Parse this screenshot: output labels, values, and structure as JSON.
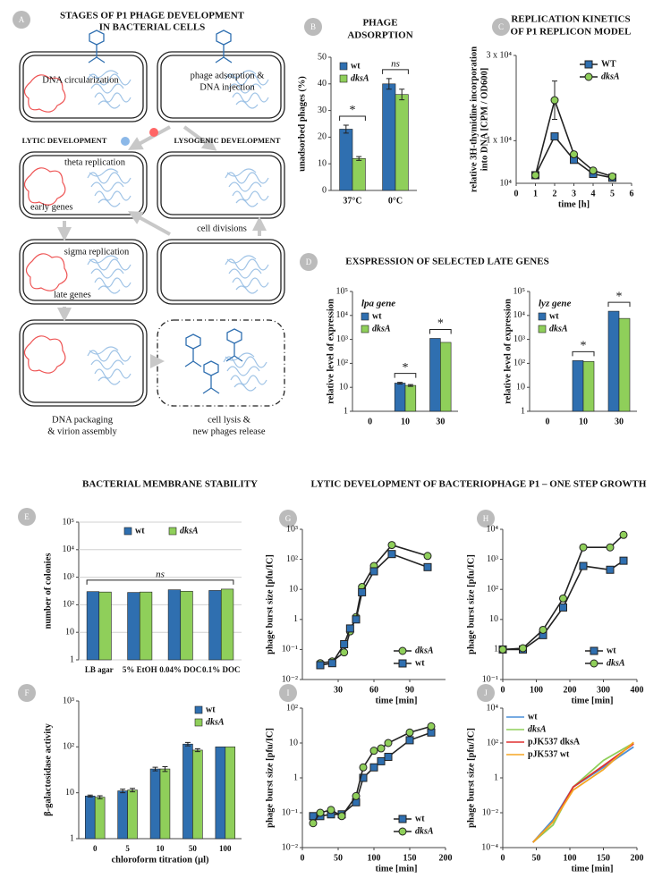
{
  "diagram": {
    "panel": "A",
    "title": [
      "STAGES OF P1 PHAGE DEVELOPMENT",
      "IN BACTERIAL CELLS"
    ],
    "labels": [
      "DNA circularization",
      "phage adsorption &",
      "DNA injection",
      "LYTIC DEVELOPMENT",
      "LYSOGENIC DEVELOPMENT",
      "theta replication",
      "early genes",
      "cell  divisions",
      "sigma replication",
      "late genes",
      "DNA packaging",
      "& virion assembly",
      "cell lysis &",
      "new phages release"
    ]
  },
  "chart_data": [
    {
      "type": "bar",
      "panel": "B",
      "title": [
        "PHAGE",
        "ADSORPTION"
      ],
      "ylabel": "unadsorbed phages (%)",
      "categories": [
        "37°C",
        "0°C"
      ],
      "series": [
        {
          "name": "wt",
          "color": "#2f6fb0",
          "values": [
            23,
            40
          ],
          "errors": [
            1.5,
            2
          ]
        },
        {
          "name": "dksA",
          "font_style": "italic",
          "color": "#8fcf5a",
          "values": [
            12,
            36
          ],
          "errors": [
            0.7,
            2
          ]
        }
      ],
      "ylim": [
        0,
        50
      ],
      "yticks": [
        0,
        10,
        20,
        30,
        40,
        50
      ],
      "legend": "upper left",
      "annotations": [
        "*",
        "ns"
      ]
    },
    {
      "type": "line",
      "panel": "C",
      "title": [
        "REPLICATION KINETICS",
        "OF P1 REPLICON MODEL"
      ],
      "ylabel": [
        "relative 3H-thymidine incorporation",
        "into DNA [CPM / OD600]"
      ],
      "xlabel": "time [h]",
      "x": [
        1,
        2,
        3,
        4,
        5
      ],
      "series": [
        {
          "name": "WT",
          "color": "#2f6fb0",
          "marker": "square",
          "values": [
            1900,
            11000,
            5500,
            2200,
            1300
          ]
        },
        {
          "name": "dksA",
          "font_style": "italic",
          "color": "#8fcf5a",
          "marker": "circle",
          "values": [
            1900,
            19500,
            6800,
            3000,
            1600
          ],
          "errors": [
            null,
            4500,
            null,
            null,
            null
          ]
        }
      ],
      "xlim": [
        0,
        6
      ],
      "xticks": [
        0,
        1,
        2,
        3,
        4,
        5,
        6
      ],
      "ylim": [
        0,
        30000
      ],
      "yticks": [
        {
          "value": 10000,
          "label": "1 x 10⁴"
        },
        {
          "value": 30000,
          "label": "3 x 10⁴"
        }
      ],
      "ybase_label": "10⁴",
      "legend": "upper right"
    },
    {
      "type": "bar",
      "panel": "D",
      "title": "EXSPRESSION OF SELECTED LATE GENES",
      "subtitle": "lpa gene",
      "ylabel": "relative level of expression",
      "categories": [
        "0",
        "10",
        "30"
      ],
      "log_y": true,
      "series": [
        {
          "name": "wt",
          "color": "#2f6fb0",
          "values": [
            null,
            15,
            1100
          ],
          "errors": [
            null,
            1.2,
            null
          ]
        },
        {
          "name": "dksA",
          "font_style": "italic",
          "color": "#8fcf5a",
          "values": [
            null,
            12,
            750
          ],
          "errors": [
            null,
            1,
            null
          ]
        }
      ],
      "ylim": [
        1,
        100000
      ],
      "yticks": [
        1,
        10,
        {
          "value": 100,
          "label": "10²"
        },
        {
          "value": 1000,
          "label": "10³"
        },
        {
          "value": 10000,
          "label": "10⁴"
        },
        {
          "value": 100000,
          "label": "10⁵"
        }
      ],
      "legend": "upper left",
      "annotations": [
        "*",
        "*"
      ]
    },
    {
      "type": "bar",
      "subtitle": "lyz gene",
      "ylabel": "relative level of expression",
      "categories": [
        "0",
        "10",
        "30"
      ],
      "log_y": true,
      "series": [
        {
          "name": "wt",
          "color": "#2f6fb0",
          "values": [
            null,
            130,
            15000
          ]
        },
        {
          "name": "dksA",
          "font_style": "italic",
          "color": "#8fcf5a",
          "values": [
            null,
            120,
            7500
          ]
        }
      ],
      "ylim": [
        1,
        100000
      ],
      "yticks": [
        1,
        10,
        {
          "value": 100,
          "label": "10²"
        },
        {
          "value": 1000,
          "label": "10³"
        },
        {
          "value": 10000,
          "label": "10⁴"
        },
        {
          "value": 100000,
          "label": "10⁵"
        }
      ],
      "legend": "upper left",
      "annotations": [
        "*",
        "*"
      ]
    },
    {
      "type": "bar",
      "panel": "E",
      "title": "BACTERIAL MEMBRANE STABILITY",
      "ylabel": "number of colonies",
      "categories": [
        "LB agar",
        "5% EtOH",
        "0.04% DOC",
        "0.1% DOC"
      ],
      "log_y": true,
      "grid": true,
      "series": [
        {
          "name": "wt",
          "color": "#2f6fb0",
          "values": [
            300,
            280,
            350,
            330
          ]
        },
        {
          "name": "dksA",
          "font_style": "italic",
          "color": "#8fcf5a",
          "values": [
            290,
            290,
            310,
            370
          ]
        }
      ],
      "ylim": [
        1,
        100000
      ],
      "yticks": [
        1,
        10,
        {
          "value": 100,
          "label": "10²"
        },
        {
          "value": 1000,
          "label": "10³"
        },
        {
          "value": 10000,
          "label": "10⁴"
        },
        {
          "value": 100000,
          "label": "10⁵"
        }
      ],
      "legend": "upper center",
      "annotations": [
        "ns"
      ]
    },
    {
      "type": "bar",
      "panel": "F",
      "ylabel": "β-galactosidase activity",
      "xlabel": "chloroform titration (µl)",
      "categories": [
        "0",
        "5",
        "10",
        "50",
        "100"
      ],
      "log_y": true,
      "series": [
        {
          "name": "wt",
          "color": "#2f6fb0",
          "values": [
            8.5,
            11,
            33,
            115,
            100
          ],
          "errors": [
            0.4,
            1,
            3,
            10,
            null
          ]
        },
        {
          "name": "dksA",
          "font_style": "italic",
          "color": "#8fcf5a",
          "values": [
            8,
            11.5,
            33,
            85,
            100
          ],
          "errors": [
            0.6,
            1,
            4,
            6,
            null
          ]
        }
      ],
      "ylim": [
        1,
        1000
      ],
      "yticks": [
        1,
        10,
        {
          "value": 100,
          "label": "10²"
        },
        {
          "value": 1000,
          "label": "10³"
        }
      ],
      "legend": "upper right"
    },
    {
      "type": "line",
      "panel": "G",
      "title": "LYTIC DEVELOPMENT OF BACTERIOPHAGE P1 – ONE STEP GROWTH",
      "ylabel": "phage burst size [pfu/IC]",
      "xlabel": "time [min]",
      "log_y": true,
      "x": [
        15,
        25,
        35,
        40,
        45,
        50,
        60,
        75,
        105
      ],
      "series": [
        {
          "name": "dksA",
          "font_style": "italic",
          "color": "#8fcf5a",
          "marker": "circle",
          "values": [
            0.035,
            0.04,
            0.08,
            0.4,
            1.2,
            12,
            60,
            300,
            130
          ]
        },
        {
          "name": "wt",
          "color": "#2f6fb0",
          "marker": "square",
          "values": [
            0.03,
            0.035,
            0.15,
            0.5,
            1,
            8,
            40,
            150,
            55
          ]
        }
      ],
      "xlim": [
        0,
        120
      ],
      "xticks": [
        30,
        60,
        90
      ],
      "ylim": [
        0.01,
        1000
      ],
      "yticks": [
        {
          "value": 0.01,
          "label": "10⁻²"
        },
        {
          "value": 0.1,
          "label": "10⁻¹"
        },
        1,
        10,
        {
          "value": 100,
          "label": "10²"
        },
        {
          "value": 1000,
          "label": "10³"
        }
      ],
      "legend": "lower right"
    },
    {
      "type": "line",
      "panel": "H",
      "ylabel": "phage burst size [pfu/IC]",
      "xlabel": "time [min]",
      "log_y": true,
      "x": [
        0,
        60,
        120,
        180,
        240,
        320,
        360
      ],
      "series": [
        {
          "name": "wt",
          "color": "#2f6fb0",
          "marker": "square",
          "values": [
            1,
            1,
            3,
            25,
            600,
            450,
            900
          ]
        },
        {
          "name": "dksA",
          "font_style": "italic",
          "color": "#8fcf5a",
          "marker": "circle",
          "values": [
            1,
            1.1,
            4.5,
            50,
            2500,
            2500,
            6500
          ]
        }
      ],
      "xlim": [
        0,
        400
      ],
      "xticks": [
        0,
        100,
        200,
        300,
        400
      ],
      "ylim": [
        0.1,
        10000
      ],
      "yticks": [
        {
          "value": 0.1,
          "label": "10⁻¹"
        },
        1,
        10,
        {
          "value": 100,
          "label": "10²"
        },
        {
          "value": 1000,
          "label": "10³"
        },
        {
          "value": 10000,
          "label": "10⁴"
        }
      ],
      "legend": "lower right"
    },
    {
      "type": "line",
      "panel": "I",
      "ylabel": "phage burst size [pfu/IC]",
      "xlabel": "time [min]",
      "log_y": true,
      "x": [
        15,
        25,
        40,
        55,
        75,
        85,
        100,
        110,
        120,
        150,
        180
      ],
      "series": [
        {
          "name": "wt",
          "color": "#2f6fb0",
          "marker": "square",
          "values": [
            0.08,
            0.08,
            0.09,
            0.09,
            0.2,
            1,
            2,
            3,
            4,
            12,
            20
          ]
        },
        {
          "name": "dksA",
          "font_style": "italic",
          "color": "#8fcf5a",
          "marker": "circle",
          "values": [
            0.05,
            0.1,
            0.12,
            0.08,
            0.3,
            2,
            6,
            7,
            10,
            20,
            30
          ]
        }
      ],
      "xlim": [
        0,
        200
      ],
      "xticks": [
        0,
        50,
        100,
        150,
        200
      ],
      "ylim": [
        0.01,
        100
      ],
      "yticks": [
        {
          "value": 0.01,
          "label": "10⁻²"
        },
        {
          "value": 0.1,
          "label": "10⁻¹"
        },
        1,
        10,
        {
          "value": 100,
          "label": "10²"
        }
      ],
      "legend": "lower right"
    },
    {
      "type": "line",
      "panel": "J",
      "ylabel": "phage burst size [pfu/IC]",
      "xlabel": "time [min]",
      "log_y": true,
      "x": [
        45,
        75,
        105,
        150,
        195
      ],
      "series": [
        {
          "name": "wt",
          "color": "#4a8fd8",
          "values": [
            0.0002,
            0.004,
            0.3,
            4,
            60
          ]
        },
        {
          "name": "dksA",
          "font_style": "italic",
          "color": "#8fcf5a",
          "values": [
            0.0002,
            0.002,
            0.3,
            10,
            100
          ]
        },
        {
          "name": "pJK537 dksA",
          "color": "#e03030",
          "values": [
            0.0002,
            0.003,
            0.3,
            5,
            90
          ]
        },
        {
          "name": "pJK537 wt",
          "color": "#f5a623",
          "values": [
            0.0002,
            0.003,
            0.2,
            3,
            110
          ]
        }
      ],
      "xlim": [
        0,
        200
      ],
      "xticks": [
        0,
        50,
        100,
        150,
        200
      ],
      "ylim": [
        0.0001,
        10000
      ],
      "yticks": [
        {
          "value": 0.0001,
          "label": "10⁻⁴"
        },
        {
          "value": 0.01,
          "label": "10⁻²"
        },
        1,
        {
          "value": 100,
          "label": "10²"
        },
        {
          "value": 10000,
          "label": "10⁴"
        }
      ],
      "legend": "upper left"
    }
  ]
}
